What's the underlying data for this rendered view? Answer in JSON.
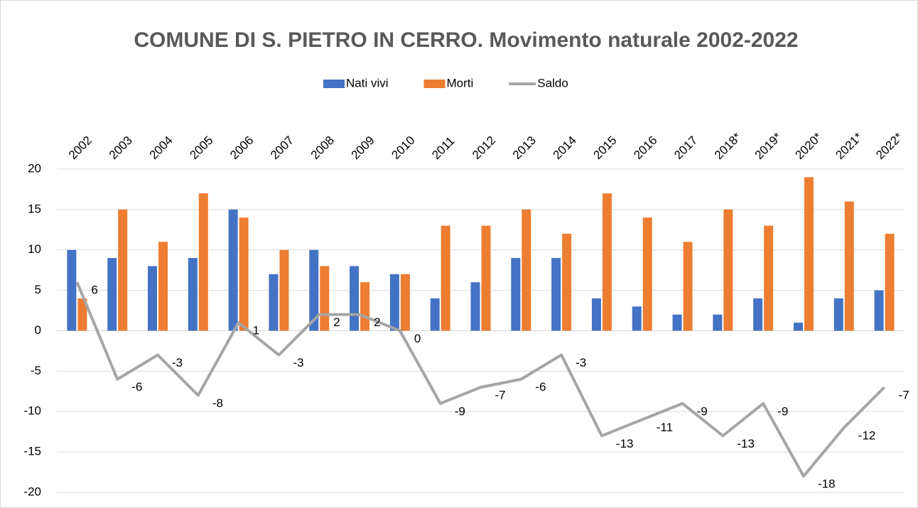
{
  "chart_data": {
    "type": "bar-line",
    "title": "COMUNE DI S. PIETRO IN CERRO. Movimento naturale 2002-2022",
    "categories": [
      "2002",
      "2003",
      "2004",
      "2005",
      "2006",
      "2007",
      "2008",
      "2009",
      "2010",
      "2011",
      "2012",
      "2013",
      "2014",
      "2015",
      "2016",
      "2017",
      "2018*",
      "2019*",
      "2020*",
      "2021*",
      "2022*"
    ],
    "series": [
      {
        "name": "Nati vivi",
        "type": "bar",
        "color": "#4472c4",
        "values": [
          10,
          9,
          8,
          9,
          15,
          7,
          10,
          8,
          7,
          4,
          6,
          9,
          9,
          4,
          3,
          2,
          2,
          4,
          1,
          4,
          5
        ]
      },
      {
        "name": "Morti",
        "type": "bar",
        "color": "#ed7d31",
        "values": [
          4,
          15,
          11,
          17,
          14,
          10,
          8,
          6,
          7,
          13,
          13,
          15,
          12,
          17,
          14,
          11,
          15,
          13,
          19,
          16,
          12
        ]
      },
      {
        "name": "Saldo",
        "type": "line",
        "color": "#a5a5a5",
        "data_labels": true,
        "values": [
          6,
          -6,
          -3,
          -8,
          1,
          -3,
          2,
          2,
          0,
          -9,
          -7,
          -6,
          -3,
          -13,
          -11,
          -9,
          -13,
          -9,
          -18,
          -12,
          -7
        ]
      }
    ],
    "ylim": [
      -20,
      20
    ],
    "yticks": [
      -20,
      -15,
      -10,
      -5,
      0,
      5,
      10,
      15,
      20
    ],
    "grid": true,
    "legend": "top"
  }
}
